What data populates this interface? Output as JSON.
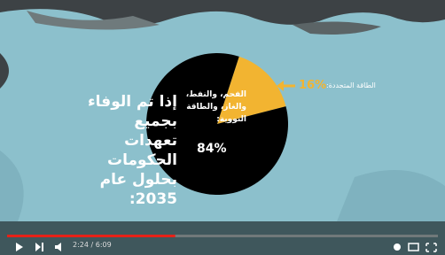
{
  "chart_data": {
    "type": "pie",
    "title_lines": [
      "إذا تم الوفاء بجميع",
      "تعهدات الحكومات",
      "بحلول عام 2035:"
    ],
    "categories": [
      "الفحم، والنفط، والغاز، والطاقة النووية:",
      "الطاقة المتجددة:"
    ],
    "values": [
      84,
      16
    ],
    "value_labels": [
      "84%",
      "16%"
    ],
    "colors": [
      "#000000",
      "#f2b431"
    ]
  },
  "player": {
    "time": "2:24 / 6:09"
  }
}
